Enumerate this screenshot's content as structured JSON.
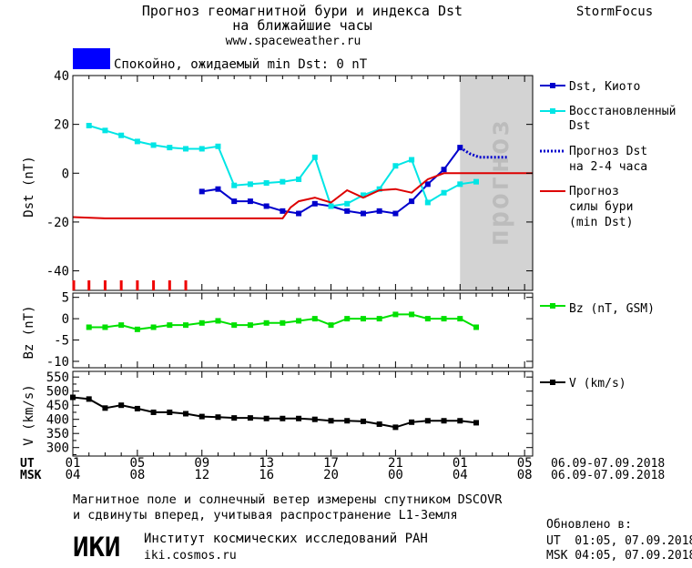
{
  "header": {
    "title_line1": "Прогноз геомагнитной бури и индекса Dst",
    "title_line2": "на ближайшие часы",
    "url": "www.spaceweather.ru",
    "brand": "StormFocus"
  },
  "status": {
    "text": "Спокойно, ожидаемый min Dst: 0 nT",
    "color": "#0000ff"
  },
  "forecast_band_label": "прогноз",
  "axes": {
    "time_labels_ut": [
      "01",
      "05",
      "09",
      "13",
      "17",
      "21",
      "01",
      "05"
    ],
    "time_labels_msk": [
      "04",
      "08",
      "12",
      "16",
      "20",
      "00",
      "04",
      "08"
    ],
    "row_label_ut": "UT",
    "row_label_msk": "MSK",
    "date_range_ut": "06.09-07.09.2018",
    "date_range_msk": "06.09-07.09.2018"
  },
  "footer": {
    "note_line1": "Магнитное поле и солнечный ветер измерены спутником DSCOVR",
    "note_line2": "и сдвинуты вперед, учитывая распространение L1-Земля",
    "institute_logo": "ИКИ",
    "institute_name": "Институт космических исследований РАН",
    "institute_url": "iki.cosmos.ru",
    "updated_label": "Обновлено в:",
    "updated_ut": "UT  01:05, 07.09.2018",
    "updated_msk": "MSK 04:05, 07.09.2018"
  },
  "chart_data": [
    {
      "type": "line",
      "ylabel": "Dst (nT)",
      "ylim": [
        -48,
        40
      ],
      "yticks": [
        40,
        20,
        0,
        -20,
        -40
      ],
      "xlim": [
        0,
        28.5
      ],
      "forecast_region": [
        24,
        28.5
      ],
      "storm_marks_x": [
        0,
        1,
        2,
        3,
        4,
        5,
        6,
        7
      ],
      "series": [
        {
          "name": "Dst, Киото",
          "color": "#0000cc",
          "marker": "square",
          "x": [
            8,
            9,
            10,
            11,
            12,
            13,
            14,
            15,
            16,
            17,
            18,
            19,
            20,
            21,
            22,
            23,
            24
          ],
          "y": [
            -7.5,
            -6.5,
            -11.5,
            -11.5,
            -13.5,
            -15.5,
            -16.5,
            -12.5,
            -13.5,
            -15.5,
            -16.5,
            -15.5,
            -16.5,
            -11.5,
            -4.5,
            1.5,
            10.5
          ]
        },
        {
          "name": "Восстановленный Dst",
          "color": "#00e5e5",
          "marker": "square",
          "x": [
            1,
            2,
            3,
            4,
            5,
            6,
            7,
            8,
            9,
            10,
            11,
            12,
            13,
            14,
            15,
            16,
            17,
            18,
            19,
            20,
            21,
            22,
            23,
            24,
            25
          ],
          "y": [
            19.5,
            17.5,
            15.5,
            13,
            11.5,
            10.5,
            10,
            10,
            11,
            -5,
            -4.5,
            -4,
            -3.5,
            -2.5,
            6.5,
            -13.5,
            -12.5,
            -9,
            -6.5,
            3,
            5.5,
            -12,
            -8,
            -4.5,
            -3.5
          ]
        },
        {
          "name": "Прогноз Dst на 2-4 часа",
          "color": "#0000cc",
          "marker": "none",
          "dash": "dotted",
          "x": [
            24,
            24.6,
            25.2,
            26,
            27
          ],
          "y": [
            10.5,
            8,
            6.5,
            6.5,
            6.5
          ]
        },
        {
          "name": "Прогноз силы бури (min Dst)",
          "color": "#dd0000",
          "marker": "none",
          "x": [
            0,
            2,
            13,
            13.5,
            14,
            15,
            16,
            17,
            18,
            19,
            20,
            21,
            22,
            23,
            24,
            28.5
          ],
          "y": [
            -18,
            -18.5,
            -18.5,
            -14,
            -11.5,
            -10,
            -12,
            -7,
            -10,
            -7,
            -6.5,
            -8,
            -2.5,
            0,
            0,
            0
          ]
        }
      ]
    },
    {
      "type": "line",
      "ylabel": "Bz (nT)",
      "ylim": [
        -11.5,
        6
      ],
      "yticks": [
        5,
        0,
        -5,
        -10
      ],
      "xlim": [
        0,
        28.5
      ],
      "series": [
        {
          "name": "Bz (nT, GSM)",
          "color": "#00e000",
          "marker": "square",
          "x": [
            1,
            2,
            3,
            4,
            5,
            6,
            7,
            8,
            9,
            10,
            11,
            12,
            13,
            14,
            15,
            16,
            17,
            18,
            19,
            20,
            21,
            22,
            23,
            24,
            25
          ],
          "y": [
            -2,
            -2,
            -1.5,
            -2.5,
            -2,
            -1.5,
            -1.5,
            -1,
            -0.5,
            -1.5,
            -1.5,
            -1,
            -1,
            -0.5,
            0,
            -1.5,
            0,
            0,
            0,
            1,
            1,
            0,
            0,
            0,
            -2
          ]
        }
      ]
    },
    {
      "type": "line",
      "ylabel": "V (km/s)",
      "ylim": [
        270,
        570
      ],
      "yticks": [
        550,
        500,
        450,
        400,
        350,
        300
      ],
      "yticks_minor": [
        575,
        525,
        475,
        425,
        375,
        325,
        275
      ],
      "xlim": [
        0,
        28.5
      ],
      "series": [
        {
          "name": "V (km/s)",
          "color": "#000000",
          "marker": "square",
          "x": [
            0,
            1,
            2,
            3,
            4,
            5,
            6,
            7,
            8,
            9,
            10,
            11,
            12,
            13,
            14,
            15,
            16,
            17,
            18,
            19,
            20,
            21,
            22,
            23,
            24,
            25
          ],
          "y": [
            478,
            472,
            440,
            450,
            438,
            425,
            425,
            420,
            410,
            408,
            405,
            405,
            403,
            403,
            403,
            400,
            395,
            395,
            393,
            383,
            372,
            390,
            395,
            395,
            395,
            388
          ]
        }
      ]
    }
  ]
}
